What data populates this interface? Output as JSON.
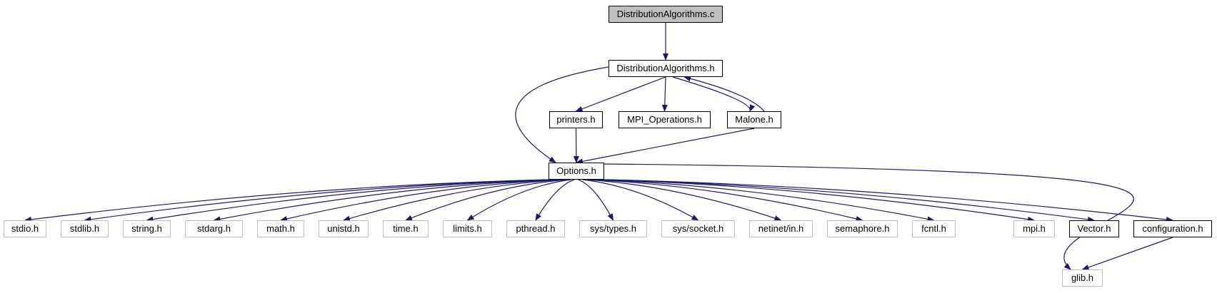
{
  "graph": {
    "nodes": [
      {
        "id": "root",
        "label": "DistributionAlgorithms.c",
        "kind": "root"
      },
      {
        "id": "dah",
        "label": "DistributionAlgorithms.h",
        "kind": "doc"
      },
      {
        "id": "printers",
        "label": "printers.h",
        "kind": "doc"
      },
      {
        "id": "mpiops",
        "label": "MPI_Operations.h",
        "kind": "doc"
      },
      {
        "id": "malone",
        "label": "Malone.h",
        "kind": "doc"
      },
      {
        "id": "options",
        "label": "Options.h",
        "kind": "doc"
      },
      {
        "id": "stdio",
        "label": "stdio.h",
        "kind": "ext"
      },
      {
        "id": "stdlib",
        "label": "stdlib.h",
        "kind": "ext"
      },
      {
        "id": "string",
        "label": "string.h",
        "kind": "ext"
      },
      {
        "id": "stdarg",
        "label": "stdarg.h",
        "kind": "ext"
      },
      {
        "id": "math",
        "label": "math.h",
        "kind": "ext"
      },
      {
        "id": "unistd",
        "label": "unistd.h",
        "kind": "ext"
      },
      {
        "id": "time",
        "label": "time.h",
        "kind": "ext"
      },
      {
        "id": "limits",
        "label": "limits.h",
        "kind": "ext"
      },
      {
        "id": "pthread",
        "label": "pthread.h",
        "kind": "ext"
      },
      {
        "id": "systypes",
        "label": "sys/types.h",
        "kind": "ext"
      },
      {
        "id": "syssocket",
        "label": "sys/socket.h",
        "kind": "ext"
      },
      {
        "id": "netinet",
        "label": "netinet/in.h",
        "kind": "ext"
      },
      {
        "id": "semaphore",
        "label": "semaphore.h",
        "kind": "ext"
      },
      {
        "id": "fcntl",
        "label": "fcntl.h",
        "kind": "ext"
      },
      {
        "id": "mpi",
        "label": "mpi.h",
        "kind": "ext"
      },
      {
        "id": "vector",
        "label": "Vector.h",
        "kind": "doc"
      },
      {
        "id": "configuration",
        "label": "configuration.h",
        "kind": "doc"
      },
      {
        "id": "glib",
        "label": "glib.h",
        "kind": "ext"
      }
    ],
    "edges": [
      [
        "root",
        "dah"
      ],
      [
        "dah",
        "printers"
      ],
      [
        "dah",
        "mpiops"
      ],
      [
        "dah",
        "malone"
      ],
      [
        "dah",
        "options"
      ],
      [
        "malone",
        "dah"
      ],
      [
        "printers",
        "options"
      ],
      [
        "malone",
        "options"
      ],
      [
        "options",
        "stdio"
      ],
      [
        "options",
        "stdlib"
      ],
      [
        "options",
        "string"
      ],
      [
        "options",
        "stdarg"
      ],
      [
        "options",
        "math"
      ],
      [
        "options",
        "unistd"
      ],
      [
        "options",
        "time"
      ],
      [
        "options",
        "limits"
      ],
      [
        "options",
        "pthread"
      ],
      [
        "options",
        "systypes"
      ],
      [
        "options",
        "syssocket"
      ],
      [
        "options",
        "netinet"
      ],
      [
        "options",
        "semaphore"
      ],
      [
        "options",
        "fcntl"
      ],
      [
        "options",
        "mpi"
      ],
      [
        "options",
        "vector"
      ],
      [
        "options",
        "configuration"
      ],
      [
        "options",
        "glib"
      ],
      [
        "configuration",
        "glib"
      ]
    ],
    "colors": {
      "edge": "#191970",
      "doc_border": "#000000",
      "ext_border": "#bfbfbf",
      "root_fill": "#bfbfbf"
    }
  }
}
